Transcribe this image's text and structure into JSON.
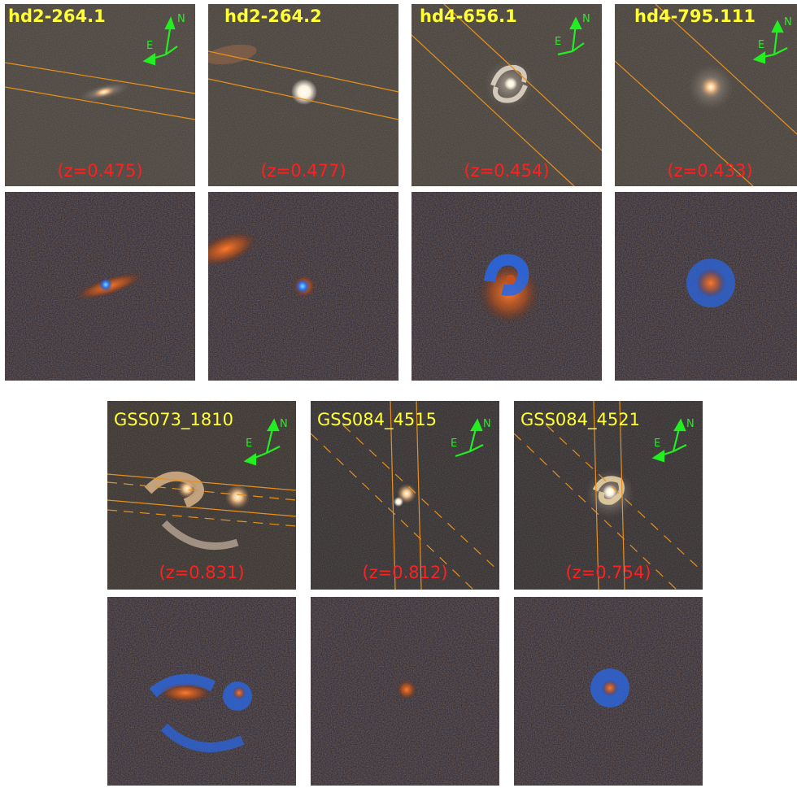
{
  "top_row": [
    {
      "name": "hd2-264.1",
      "redshift": "(z=0.475)"
    },
    {
      "name": "hd2-264.2",
      "redshift": "(z=0.477)"
    },
    {
      "name": "hd4-656.1",
      "redshift": "(z=0.454)"
    },
    {
      "name": "hd4-795.111",
      "redshift": "(z=0.433)"
    }
  ],
  "bottom_row": [
    {
      "name": "GSS073_1810",
      "redshift": "(z=0.831)"
    },
    {
      "name": "GSS084_4515",
      "redshift": "(z=0.812)"
    },
    {
      "name": "GSS084_4521",
      "redshift": "(z=0.754)"
    }
  ],
  "compass": {
    "north": "N",
    "east": "E"
  },
  "colors": {
    "label": "#ffff33",
    "redshift": "#ff2020",
    "compass": "#22ee22",
    "slit": "#e8901c",
    "color_panel_bg": "#1a2440"
  }
}
